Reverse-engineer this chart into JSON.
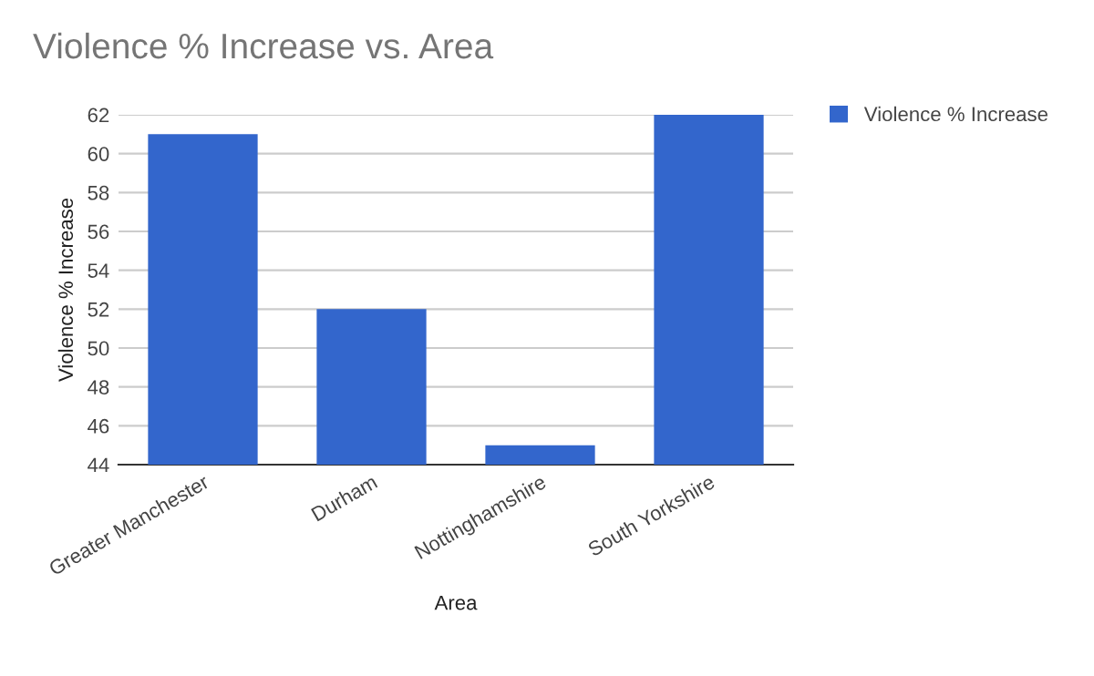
{
  "chart_data": {
    "type": "bar",
    "title": "Violence % Increase vs. Area",
    "xlabel": "Area",
    "ylabel": "Violence % Increase",
    "categories": [
      "Greater Manchester",
      "Durham",
      "Nottinghamshire",
      "South Yorkshire"
    ],
    "series": [
      {
        "name": "Violence % Increase",
        "color": "#3366cc",
        "values": [
          61,
          52,
          45,
          62
        ]
      }
    ],
    "ylim": [
      44,
      62
    ],
    "yticks": [
      44,
      46,
      48,
      50,
      52,
      54,
      56,
      58,
      60,
      62
    ],
    "grid": "y",
    "legend": "top right"
  }
}
